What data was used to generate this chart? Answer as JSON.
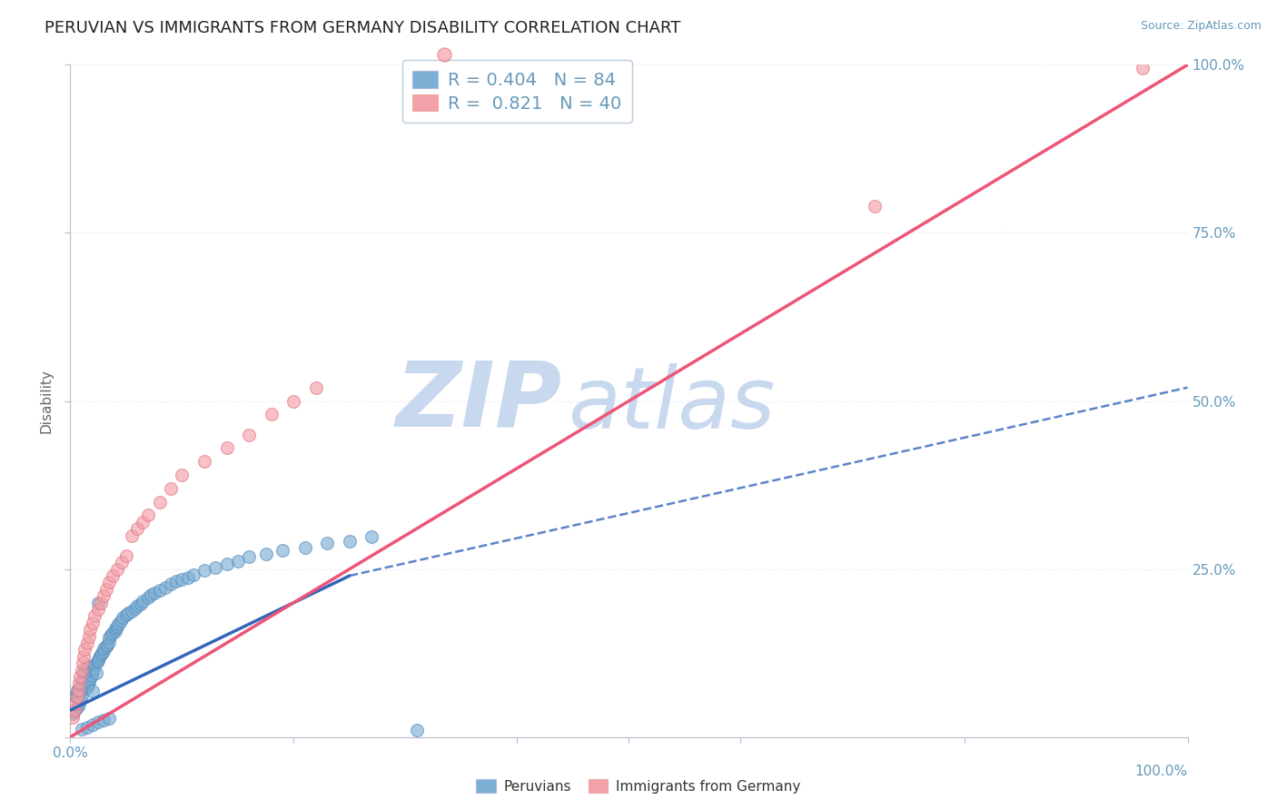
{
  "title": "PERUVIAN VS IMMIGRANTS FROM GERMANY DISABILITY CORRELATION CHART",
  "source": "Source: ZipAtlas.com",
  "ylabel": "Disability",
  "xlim": [
    0,
    1.0
  ],
  "ylim": [
    0,
    1.0
  ],
  "peruvian_R": 0.404,
  "peruvian_N": 84,
  "germany_R": 0.821,
  "germany_N": 40,
  "peruvian_color": "#7BAFD4",
  "germany_color": "#F4A0A8",
  "peruvian_edge_color": "#5588BB",
  "germany_edge_color": "#E07080",
  "peruvian_line_color": "#3366BB",
  "germany_line_color": "#EE5577",
  "background_color": "#FFFFFF",
  "watermark_zip_color": "#C8D8EE",
  "watermark_atlas_color": "#C8D8EE",
  "title_color": "#222222",
  "axis_label_color": "#666666",
  "right_tick_color": "#6699BB",
  "grid_color": "#E0E5EE",
  "legend_border_color": "#BBCCDD",
  "peru_solid_line": [
    [
      0.0,
      0.04
    ],
    [
      0.25,
      0.24
    ]
  ],
  "peru_dashed_line": [
    [
      0.25,
      0.24
    ],
    [
      1.0,
      0.52
    ]
  ],
  "ger_solid_line": [
    [
      0.0,
      0.0
    ],
    [
      1.0,
      1.0
    ]
  ],
  "peru_x": [
    0.002,
    0.003,
    0.004,
    0.005,
    0.005,
    0.006,
    0.006,
    0.007,
    0.008,
    0.008,
    0.009,
    0.01,
    0.01,
    0.011,
    0.012,
    0.012,
    0.013,
    0.014,
    0.015,
    0.015,
    0.016,
    0.017,
    0.018,
    0.019,
    0.02,
    0.02,
    0.021,
    0.022,
    0.023,
    0.024,
    0.025,
    0.026,
    0.027,
    0.028,
    0.03,
    0.03,
    0.032,
    0.033,
    0.035,
    0.035,
    0.036,
    0.038,
    0.04,
    0.04,
    0.042,
    0.043,
    0.045,
    0.047,
    0.05,
    0.052,
    0.055,
    0.058,
    0.06,
    0.063,
    0.065,
    0.07,
    0.072,
    0.075,
    0.08,
    0.085,
    0.09,
    0.095,
    0.1,
    0.105,
    0.11,
    0.12,
    0.13,
    0.14,
    0.15,
    0.16,
    0.175,
    0.19,
    0.21,
    0.23,
    0.25,
    0.27,
    0.01,
    0.015,
    0.02,
    0.025,
    0.03,
    0.035,
    0.025,
    0.31
  ],
  "peru_y": [
    0.035,
    0.038,
    0.04,
    0.042,
    0.06,
    0.065,
    0.07,
    0.045,
    0.05,
    0.055,
    0.058,
    0.062,
    0.08,
    0.085,
    0.09,
    0.095,
    0.1,
    0.072,
    0.075,
    0.105,
    0.078,
    0.082,
    0.088,
    0.092,
    0.068,
    0.098,
    0.102,
    0.108,
    0.095,
    0.112,
    0.115,
    0.118,
    0.122,
    0.125,
    0.128,
    0.132,
    0.135,
    0.138,
    0.142,
    0.148,
    0.152,
    0.155,
    0.158,
    0.162,
    0.165,
    0.168,
    0.172,
    0.178,
    0.182,
    0.185,
    0.188,
    0.192,
    0.195,
    0.198,
    0.202,
    0.208,
    0.212,
    0.215,
    0.218,
    0.222,
    0.228,
    0.232,
    0.235,
    0.238,
    0.242,
    0.248,
    0.252,
    0.258,
    0.262,
    0.268,
    0.272,
    0.278,
    0.282,
    0.288,
    0.292,
    0.298,
    0.012,
    0.015,
    0.018,
    0.022,
    0.025,
    0.028,
    0.2,
    0.01
  ],
  "ger_x": [
    0.002,
    0.004,
    0.005,
    0.006,
    0.007,
    0.008,
    0.009,
    0.01,
    0.011,
    0.012,
    0.013,
    0.015,
    0.017,
    0.018,
    0.02,
    0.022,
    0.025,
    0.027,
    0.03,
    0.032,
    0.035,
    0.038,
    0.042,
    0.046,
    0.05,
    0.055,
    0.06,
    0.065,
    0.07,
    0.08,
    0.09,
    0.1,
    0.12,
    0.14,
    0.16,
    0.18,
    0.2,
    0.22,
    0.72,
    0.96
  ],
  "ger_y": [
    0.03,
    0.04,
    0.05,
    0.06,
    0.07,
    0.08,
    0.09,
    0.1,
    0.11,
    0.12,
    0.13,
    0.14,
    0.15,
    0.16,
    0.17,
    0.18,
    0.19,
    0.2,
    0.21,
    0.22,
    0.23,
    0.24,
    0.25,
    0.26,
    0.27,
    0.3,
    0.31,
    0.32,
    0.33,
    0.35,
    0.37,
    0.39,
    0.41,
    0.43,
    0.45,
    0.48,
    0.5,
    0.52,
    0.79,
    0.995
  ],
  "font_size_title": 13,
  "font_size_labels": 11,
  "font_size_ticks": 11,
  "font_size_legend": 13,
  "marker_size": 100
}
